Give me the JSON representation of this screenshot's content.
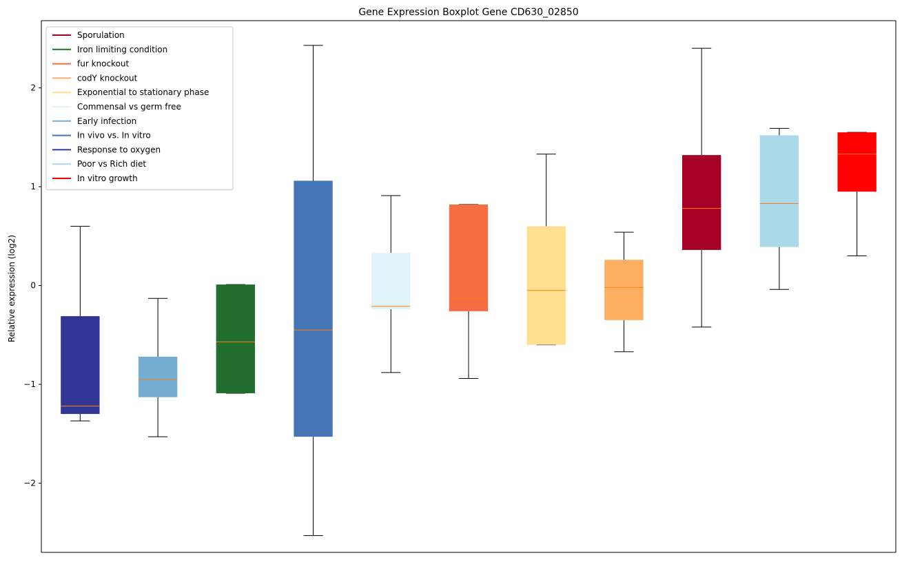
{
  "chart_data": {
    "type": "box",
    "title": "Gene Expression Boxplot Gene CD630_02850",
    "xlabel": "",
    "ylabel": "Relative expression (log2)",
    "ylim": [
      -2.7,
      2.68
    ],
    "yticks": [
      -2,
      -1,
      0,
      1,
      2
    ],
    "ytick_labels": [
      "−2",
      "−1",
      "0",
      "1",
      "2"
    ],
    "grid": false,
    "legend_position": "top-left",
    "median_color": "#ff7f0e",
    "legend": [
      {
        "label": "Sporulation",
        "color": "#a50026"
      },
      {
        "label": "Iron limiting condition",
        "color": "#226e2e"
      },
      {
        "label": "fur knockout",
        "color": "#f46d43"
      },
      {
        "label": "codY knockout",
        "color": "#fdae61"
      },
      {
        "label": "Exponential to stationary phase",
        "color": "#fee090"
      },
      {
        "label": "Commensal vs germ free",
        "color": "#e0f3f8"
      },
      {
        "label": "Early infection",
        "color": "#74add1"
      },
      {
        "label": "In vivo vs. In vitro",
        "color": "#4575b4"
      },
      {
        "label": "Response to oxygen",
        "color": "#313695"
      },
      {
        "label": "Poor vs Rich diet",
        "color": "#abd9e9"
      },
      {
        "label": "In vitro growth",
        "color": "#ff0000"
      }
    ],
    "boxes": [
      {
        "group": "Response to oxygen",
        "color": "#313695",
        "whisker_low": -1.37,
        "q1": -1.3,
        "median": -1.22,
        "q3": -0.31,
        "whisker_high": 0.6
      },
      {
        "group": "Early infection",
        "color": "#74add1",
        "whisker_low": -1.53,
        "q1": -1.13,
        "median": -0.95,
        "q3": -0.72,
        "whisker_high": -0.13
      },
      {
        "group": "Iron limiting condition",
        "color": "#226e2e",
        "whisker_low": -1.09,
        "q1": -1.09,
        "median": -0.57,
        "q3": 0.01,
        "whisker_high": 0.01
      },
      {
        "group": "In vivo vs. In vitro",
        "color": "#4575b4",
        "whisker_low": -2.53,
        "q1": -1.53,
        "median": -0.45,
        "q3": 1.06,
        "whisker_high": 2.43
      },
      {
        "group": "Commensal vs germ free",
        "color": "#e0f3f8",
        "whisker_low": -0.88,
        "q1": -0.24,
        "median": -0.21,
        "q3": 0.33,
        "whisker_high": 0.91
      },
      {
        "group": "fur knockout",
        "color": "#f46d43",
        "whisker_low": -0.94,
        "q1": -0.26,
        "median": -0.13,
        "q3": 0.82,
        "whisker_high": 0.82
      },
      {
        "group": "Exponential to stationary phase",
        "color": "#fee090",
        "whisker_low": -0.6,
        "q1": -0.6,
        "median": -0.05,
        "q3": 0.6,
        "whisker_high": 1.33
      },
      {
        "group": "codY knockout",
        "color": "#fdae61",
        "whisker_low": -0.67,
        "q1": -0.35,
        "median": -0.02,
        "q3": 0.26,
        "whisker_high": 0.54
      },
      {
        "group": "Sporulation",
        "color": "#a50026",
        "whisker_low": -0.42,
        "q1": 0.36,
        "median": 0.78,
        "q3": 1.32,
        "whisker_high": 2.4
      },
      {
        "group": "Poor vs Rich diet",
        "color": "#abd9e9",
        "whisker_low": -0.04,
        "q1": 0.39,
        "median": 0.83,
        "q3": 1.52,
        "whisker_high": 1.59
      },
      {
        "group": "In vitro growth",
        "color": "#ff0000",
        "whisker_low": 0.3,
        "q1": 0.95,
        "median": 1.33,
        "q3": 1.55,
        "whisker_high": 1.55
      }
    ]
  }
}
